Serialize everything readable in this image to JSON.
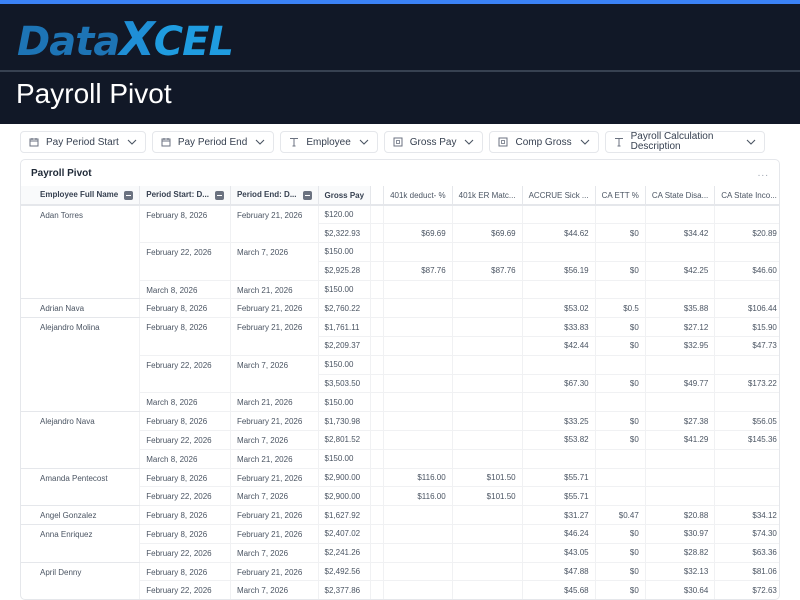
{
  "brand": {
    "logo_data": "Data",
    "logo_x": "X",
    "logo_cel": "CEL",
    "accent": "#3b82f6",
    "header_bg": "#111827"
  },
  "page": {
    "title": "Payroll Pivot"
  },
  "filters": [
    {
      "label": "Pay Period Start",
      "icon": "calendar-icon"
    },
    {
      "label": "Pay Period End",
      "icon": "calendar-icon"
    },
    {
      "label": "Employee",
      "icon": "text-icon"
    },
    {
      "label": "Gross Pay",
      "icon": "number-icon"
    },
    {
      "label": "Comp Gross",
      "icon": "number-icon"
    },
    {
      "label": "Payroll Calculation Description",
      "icon": "text-icon"
    }
  ],
  "pivot": {
    "title": "Payroll Pivot",
    "more": "...",
    "headers": {
      "employee": "Employee Full Name",
      "start": "Period Start: D...",
      "end": "Period End: D...",
      "gross": "Gross Pay",
      "blank": "",
      "c1": "401k deduct- %",
      "c2": "401k ER Matc...",
      "c3": "ACCRUE Sick ...",
      "c4": "CA ETT %",
      "c5": "CA State Disa...",
      "c6": "CA State Inco..."
    },
    "rows": [
      {
        "name": "Adan Torres",
        "start": "February 8, 2026",
        "end": "February 21, 2026",
        "gross": "$120.00",
        "c1": "",
        "c2": "",
        "c3": "",
        "c4": "",
        "c5": "",
        "c6": ""
      },
      {
        "name": "",
        "start": "",
        "end": "",
        "gross": "$2,322.93",
        "c1": "$69.69",
        "c2": "$69.69",
        "c3": "$44.62",
        "c4": "$0",
        "c5": "$34.42",
        "c6": "$20.89"
      },
      {
        "name": "",
        "start": "February 22, 2026",
        "end": "March 7, 2026",
        "gross": "$150.00",
        "c1": "",
        "c2": "",
        "c3": "",
        "c4": "",
        "c5": "",
        "c6": ""
      },
      {
        "name": "",
        "start": "",
        "end": "",
        "gross": "$2,925.28",
        "c1": "$87.76",
        "c2": "$87.76",
        "c3": "$56.19",
        "c4": "$0",
        "c5": "$42.25",
        "c6": "$46.60"
      },
      {
        "name": "",
        "start": "March 8, 2026",
        "end": "March 21, 2026",
        "gross": "$150.00",
        "c1": "",
        "c2": "",
        "c3": "",
        "c4": "",
        "c5": "",
        "c6": ""
      },
      {
        "name": "Adrian Nava",
        "start": "February 8, 2026",
        "end": "February 21, 2026",
        "gross": "$2,760.22",
        "c1": "",
        "c2": "",
        "c3": "$53.02",
        "c4": "$0.5",
        "c5": "$35.88",
        "c6": "$106.44"
      },
      {
        "name": "Alejandro Molina",
        "start": "February 8, 2026",
        "end": "February 21, 2026",
        "gross": "$1,761.11",
        "c1": "",
        "c2": "",
        "c3": "$33.83",
        "c4": "$0",
        "c5": "$27.12",
        "c6": "$15.90"
      },
      {
        "name": "",
        "start": "",
        "end": "",
        "gross": "$2,209.37",
        "c1": "",
        "c2": "",
        "c3": "$42.44",
        "c4": "$0",
        "c5": "$32.95",
        "c6": "$47.73"
      },
      {
        "name": "",
        "start": "February 22, 2026",
        "end": "March 7, 2026",
        "gross": "$150.00",
        "c1": "",
        "c2": "",
        "c3": "",
        "c4": "",
        "c5": "",
        "c6": ""
      },
      {
        "name": "",
        "start": "",
        "end": "",
        "gross": "$3,503.50",
        "c1": "",
        "c2": "",
        "c3": "$67.30",
        "c4": "$0",
        "c5": "$49.77",
        "c6": "$173.22"
      },
      {
        "name": "",
        "start": "March 8, 2026",
        "end": "March 21, 2026",
        "gross": "$150.00",
        "c1": "",
        "c2": "",
        "c3": "",
        "c4": "",
        "c5": "",
        "c6": ""
      },
      {
        "name": "Alejandro Nava",
        "start": "February 8, 2026",
        "end": "February 21, 2026",
        "gross": "$1,730.98",
        "c1": "",
        "c2": "",
        "c3": "$33.25",
        "c4": "$0",
        "c5": "$27.38",
        "c6": "$56.05"
      },
      {
        "name": "",
        "start": "February 22, 2026",
        "end": "March 7, 2026",
        "gross": "$2,801.52",
        "c1": "",
        "c2": "",
        "c3": "$53.82",
        "c4": "$0",
        "c5": "$41.29",
        "c6": "$145.36"
      },
      {
        "name": "",
        "start": "March 8, 2026",
        "end": "March 21, 2026",
        "gross": "$150.00",
        "c1": "",
        "c2": "",
        "c3": "",
        "c4": "",
        "c5": "",
        "c6": ""
      },
      {
        "name": "Amanda Pentecost",
        "start": "February 8, 2026",
        "end": "February 21, 2026",
        "gross": "$2,900.00",
        "c1": "$116.00",
        "c2": "$101.50",
        "c3": "$55.71",
        "c4": "",
        "c5": "",
        "c6": ""
      },
      {
        "name": "",
        "start": "February 22, 2026",
        "end": "March 7, 2026",
        "gross": "$2,900.00",
        "c1": "$116.00",
        "c2": "$101.50",
        "c3": "$55.71",
        "c4": "",
        "c5": "",
        "c6": ""
      },
      {
        "name": "Angel Gonzalez",
        "start": "February 8, 2026",
        "end": "February 21, 2026",
        "gross": "$1,627.92",
        "c1": "",
        "c2": "",
        "c3": "$31.27",
        "c4": "$0.47",
        "c5": "$20.88",
        "c6": "$34.12"
      },
      {
        "name": "Anna Enriquez",
        "start": "February 8, 2026",
        "end": "February 21, 2026",
        "gross": "$2,407.02",
        "c1": "",
        "c2": "",
        "c3": "$46.24",
        "c4": "$0",
        "c5": "$30.97",
        "c6": "$74.30"
      },
      {
        "name": "",
        "start": "February 22, 2026",
        "end": "March 7, 2026",
        "gross": "$2,241.26",
        "c1": "",
        "c2": "",
        "c3": "$43.05",
        "c4": "$0",
        "c5": "$28.82",
        "c6": "$63.36"
      },
      {
        "name": "April Denny",
        "start": "February 8, 2026",
        "end": "February 21, 2026",
        "gross": "$2,492.56",
        "c1": "",
        "c2": "",
        "c3": "$47.88",
        "c4": "$0",
        "c5": "$32.13",
        "c6": "$81.06"
      },
      {
        "name": "",
        "start": "February 22, 2026",
        "end": "March 7, 2026",
        "gross": "$2,377.86",
        "c1": "",
        "c2": "",
        "c3": "$45.68",
        "c4": "$0",
        "c5": "$30.64",
        "c6": "$72.63"
      }
    ]
  }
}
